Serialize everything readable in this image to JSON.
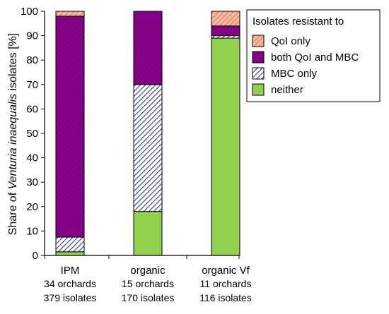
{
  "chart_data": {
    "type": "bar",
    "stacked": true,
    "ylabel_parts": [
      "Share of ",
      "Venturia inaequalis",
      " isolates [%]"
    ],
    "ylim": [
      0,
      100
    ],
    "yticks": [
      "0",
      "10",
      "20",
      "30",
      "40",
      "50",
      "60",
      "70",
      "80",
      "90",
      "100"
    ],
    "categories": [
      {
        "label": "IPM",
        "orchards": "34 orchards",
        "isolates": "379 isolates"
      },
      {
        "label": "organic",
        "orchards": "15 orchards",
        "isolates": "170 isolates"
      },
      {
        "label": "organic Vf",
        "orchards": "11 orchards",
        "isolates": "116 isolates"
      }
    ],
    "series": [
      {
        "name": "neither",
        "color": "#92d050",
        "pattern": "solid",
        "values": [
          1.5,
          18,
          89
        ]
      },
      {
        "name": "MBC only",
        "color": "#2e3a8c",
        "pattern": "hatch-blue",
        "values": [
          6,
          52,
          1
        ]
      },
      {
        "name": "both QoI and MBC",
        "color": "#8b008b",
        "pattern": "hatch-purple",
        "values": [
          90.5,
          30,
          4
        ]
      },
      {
        "name": "QoI only",
        "color": "#f4a582",
        "pattern": "hatch-salmon",
        "values": [
          2,
          0,
          6
        ]
      }
    ],
    "legend": {
      "title": "Isolates resistant to",
      "order": [
        "QoI only",
        "both QoI and MBC",
        "MBC only",
        "neither"
      ],
      "labels": [
        "QoI only",
        "both QoI and MBC",
        " MBC only",
        "neither"
      ],
      "position": "top-right"
    },
    "grid": false
  }
}
